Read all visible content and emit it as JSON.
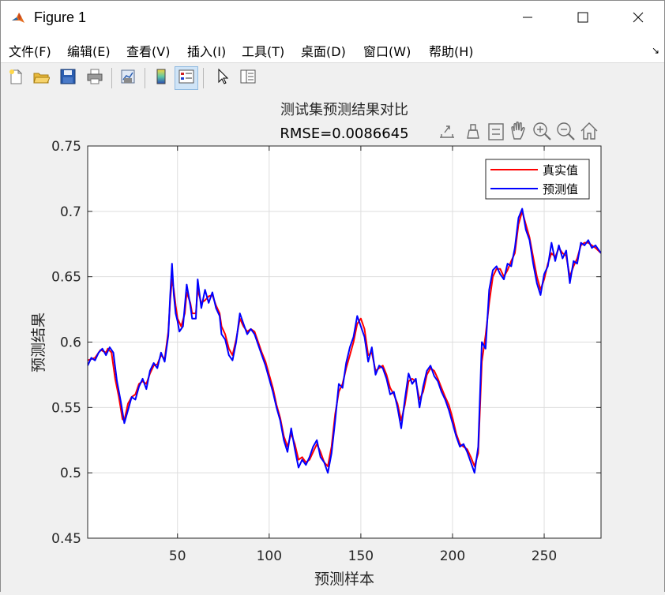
{
  "window": {
    "title": "Figure 1",
    "icon": "matlab-logo-icon",
    "controls": [
      "minimize-icon",
      "maximize-icon",
      "close-icon"
    ]
  },
  "menu": {
    "items": [
      "文件(F)",
      "编辑(E)",
      "查看(V)",
      "插入(I)",
      "工具(T)",
      "桌面(D)",
      "窗口(W)",
      "帮助(H)"
    ]
  },
  "toolbar": {
    "buttons": [
      "new-figure-icon",
      "open-file-icon",
      "save-icon",
      "print-icon",
      "link-plot-icon",
      "insert-colorbar-icon",
      "insert-legend-icon",
      "edit-plot-icon",
      "property-inspector-icon"
    ]
  },
  "axes_toolbar": {
    "buttons": [
      "export-icon",
      "brush-icon",
      "datatips-icon",
      "pan-icon",
      "zoom-in-icon",
      "zoom-out-icon",
      "home-icon"
    ]
  },
  "chart_data": {
    "type": "line",
    "title": "测试集预测结果对比",
    "subtitle": "RMSE=0.0086645",
    "xlabel": "预测样本",
    "ylabel": "预测结果",
    "xlim": [
      1,
      281
    ],
    "ylim": [
      0.45,
      0.75
    ],
    "xticks": [
      50,
      100,
      150,
      200,
      250
    ],
    "yticks": [
      0.45,
      0.5,
      0.55,
      0.6,
      0.65,
      0.7,
      0.75
    ],
    "ytick_labels": [
      "0.45",
      "0.5",
      "0.55",
      "0.6",
      "0.65",
      "0.7",
      "0.75"
    ],
    "grid": true,
    "legend_position": "top-right",
    "series": [
      {
        "name": "真实值",
        "color": "#ff0000",
        "keypoints": [
          [
            1,
            0.586
          ],
          [
            5,
            0.588
          ],
          [
            8,
            0.594
          ],
          [
            11,
            0.592
          ],
          [
            12,
            0.595
          ],
          [
            14,
            0.592
          ],
          [
            16,
            0.572
          ],
          [
            18,
            0.558
          ],
          [
            20,
            0.541
          ],
          [
            21,
            0.54
          ],
          [
            23,
            0.553
          ],
          [
            25,
            0.558
          ],
          [
            27,
            0.56
          ],
          [
            29,
            0.568
          ],
          [
            31,
            0.57
          ],
          [
            33,
            0.568
          ],
          [
            35,
            0.576
          ],
          [
            37,
            0.582
          ],
          [
            39,
            0.583
          ],
          [
            41,
            0.59
          ],
          [
            43,
            0.587
          ],
          [
            45,
            0.608
          ],
          [
            46,
            0.632
          ],
          [
            47,
            0.648
          ],
          [
            48,
            0.64
          ],
          [
            49,
            0.628
          ],
          [
            50,
            0.618
          ],
          [
            52,
            0.612
          ],
          [
            54,
            0.622
          ],
          [
            55,
            0.638
          ],
          [
            57,
            0.63
          ],
          [
            58,
            0.622
          ],
          [
            60,
            0.622
          ],
          [
            61,
            0.64
          ],
          [
            63,
            0.63
          ],
          [
            65,
            0.632
          ],
          [
            67,
            0.635
          ],
          [
            69,
            0.636
          ],
          [
            71,
            0.628
          ],
          [
            73,
            0.622
          ],
          [
            74,
            0.612
          ],
          [
            76,
            0.606
          ],
          [
            78,
            0.595
          ],
          [
            80,
            0.59
          ],
          [
            82,
            0.602
          ],
          [
            84,
            0.618
          ],
          [
            86,
            0.612
          ],
          [
            88,
            0.608
          ],
          [
            90,
            0.61
          ],
          [
            92,
            0.608
          ],
          [
            94,
            0.6
          ],
          [
            96,
            0.592
          ],
          [
            98,
            0.585
          ],
          [
            100,
            0.575
          ],
          [
            102,
            0.565
          ],
          [
            104,
            0.552
          ],
          [
            106,
            0.542
          ],
          [
            108,
            0.528
          ],
          [
            110,
            0.52
          ],
          [
            112,
            0.53
          ],
          [
            114,
            0.522
          ],
          [
            116,
            0.51
          ],
          [
            118,
            0.512
          ],
          [
            120,
            0.508
          ],
          [
            122,
            0.51
          ],
          [
            124,
            0.516
          ],
          [
            126,
            0.522
          ],
          [
            128,
            0.516
          ],
          [
            130,
            0.508
          ],
          [
            132,
            0.505
          ],
          [
            134,
            0.52
          ],
          [
            136,
            0.545
          ],
          [
            138,
            0.562
          ],
          [
            140,
            0.568
          ],
          [
            142,
            0.58
          ],
          [
            144,
            0.59
          ],
          [
            146,
            0.6
          ],
          [
            148,
            0.614
          ],
          [
            150,
            0.618
          ],
          [
            152,
            0.61
          ],
          [
            154,
            0.59
          ],
          [
            156,
            0.592
          ],
          [
            158,
            0.578
          ],
          [
            160,
            0.58
          ],
          [
            162,
            0.582
          ],
          [
            164,
            0.575
          ],
          [
            166,
            0.565
          ],
          [
            168,
            0.56
          ],
          [
            170,
            0.553
          ],
          [
            172,
            0.54
          ],
          [
            174,
            0.552
          ],
          [
            176,
            0.57
          ],
          [
            178,
            0.572
          ],
          [
            180,
            0.57
          ],
          [
            182,
            0.556
          ],
          [
            184,
            0.562
          ],
          [
            186,
            0.575
          ],
          [
            188,
            0.58
          ],
          [
            190,
            0.578
          ],
          [
            192,
            0.572
          ],
          [
            194,
            0.565
          ],
          [
            196,
            0.558
          ],
          [
            198,
            0.552
          ],
          [
            200,
            0.542
          ],
          [
            202,
            0.53
          ],
          [
            204,
            0.522
          ],
          [
            206,
            0.52
          ],
          [
            208,
            0.518
          ],
          [
            210,
            0.512
          ],
          [
            212,
            0.505
          ],
          [
            214,
            0.515
          ],
          [
            216,
            0.585
          ],
          [
            218,
            0.605
          ],
          [
            220,
            0.63
          ],
          [
            222,
            0.65
          ],
          [
            224,
            0.656
          ],
          [
            226,
            0.656
          ],
          [
            228,
            0.65
          ],
          [
            230,
            0.655
          ],
          [
            232,
            0.662
          ],
          [
            234,
            0.668
          ],
          [
            236,
            0.69
          ],
          [
            238,
            0.7
          ],
          [
            240,
            0.69
          ],
          [
            242,
            0.68
          ],
          [
            244,
            0.665
          ],
          [
            246,
            0.65
          ],
          [
            248,
            0.64
          ],
          [
            250,
            0.648
          ],
          [
            252,
            0.66
          ],
          [
            254,
            0.668
          ],
          [
            256,
            0.665
          ],
          [
            258,
            0.672
          ],
          [
            260,
            0.668
          ],
          [
            262,
            0.666
          ],
          [
            264,
            0.65
          ],
          [
            266,
            0.658
          ],
          [
            268,
            0.664
          ],
          [
            270,
            0.674
          ],
          [
            272,
            0.676
          ],
          [
            274,
            0.676
          ],
          [
            276,
            0.674
          ],
          [
            278,
            0.672
          ],
          [
            281,
            0.668
          ]
        ]
      },
      {
        "name": "预测值",
        "color": "#0000ff",
        "keypoints": [
          [
            1,
            0.582
          ],
          [
            3,
            0.588
          ],
          [
            5,
            0.586
          ],
          [
            7,
            0.592
          ],
          [
            9,
            0.595
          ],
          [
            11,
            0.59
          ],
          [
            13,
            0.596
          ],
          [
            15,
            0.592
          ],
          [
            17,
            0.57
          ],
          [
            19,
            0.555
          ],
          [
            21,
            0.538
          ],
          [
            23,
            0.548
          ],
          [
            25,
            0.558
          ],
          [
            27,
            0.556
          ],
          [
            29,
            0.566
          ],
          [
            31,
            0.572
          ],
          [
            33,
            0.564
          ],
          [
            35,
            0.578
          ],
          [
            37,
            0.584
          ],
          [
            39,
            0.58
          ],
          [
            41,
            0.592
          ],
          [
            43,
            0.585
          ],
          [
            45,
            0.605
          ],
          [
            46,
            0.636
          ],
          [
            47,
            0.66
          ],
          [
            48,
            0.636
          ],
          [
            49,
            0.622
          ],
          [
            50,
            0.616
          ],
          [
            51,
            0.608
          ],
          [
            53,
            0.612
          ],
          [
            55,
            0.644
          ],
          [
            57,
            0.628
          ],
          [
            58,
            0.618
          ],
          [
            60,
            0.618
          ],
          [
            61,
            0.648
          ],
          [
            63,
            0.626
          ],
          [
            65,
            0.64
          ],
          [
            67,
            0.63
          ],
          [
            69,
            0.638
          ],
          [
            71,
            0.626
          ],
          [
            73,
            0.62
          ],
          [
            74,
            0.606
          ],
          [
            76,
            0.602
          ],
          [
            78,
            0.59
          ],
          [
            80,
            0.586
          ],
          [
            82,
            0.6
          ],
          [
            84,
            0.622
          ],
          [
            86,
            0.614
          ],
          [
            88,
            0.606
          ],
          [
            90,
            0.61
          ],
          [
            92,
            0.606
          ],
          [
            94,
            0.598
          ],
          [
            96,
            0.59
          ],
          [
            98,
            0.582
          ],
          [
            100,
            0.572
          ],
          [
            102,
            0.562
          ],
          [
            104,
            0.55
          ],
          [
            106,
            0.54
          ],
          [
            108,
            0.525
          ],
          [
            110,
            0.516
          ],
          [
            112,
            0.534
          ],
          [
            114,
            0.518
          ],
          [
            116,
            0.504
          ],
          [
            118,
            0.51
          ],
          [
            120,
            0.506
          ],
          [
            122,
            0.512
          ],
          [
            124,
            0.52
          ],
          [
            126,
            0.525
          ],
          [
            128,
            0.512
          ],
          [
            130,
            0.508
          ],
          [
            132,
            0.5
          ],
          [
            134,
            0.515
          ],
          [
            136,
            0.54
          ],
          [
            138,
            0.568
          ],
          [
            140,
            0.565
          ],
          [
            142,
            0.584
          ],
          [
            144,
            0.596
          ],
          [
            146,
            0.604
          ],
          [
            148,
            0.62
          ],
          [
            150,
            0.612
          ],
          [
            152,
            0.604
          ],
          [
            154,
            0.585
          ],
          [
            156,
            0.596
          ],
          [
            158,
            0.575
          ],
          [
            160,
            0.582
          ],
          [
            162,
            0.58
          ],
          [
            164,
            0.572
          ],
          [
            166,
            0.56
          ],
          [
            168,
            0.562
          ],
          [
            170,
            0.55
          ],
          [
            172,
            0.534
          ],
          [
            174,
            0.556
          ],
          [
            176,
            0.576
          ],
          [
            178,
            0.568
          ],
          [
            180,
            0.572
          ],
          [
            182,
            0.55
          ],
          [
            184,
            0.566
          ],
          [
            186,
            0.578
          ],
          [
            188,
            0.582
          ],
          [
            190,
            0.574
          ],
          [
            192,
            0.57
          ],
          [
            194,
            0.562
          ],
          [
            196,
            0.556
          ],
          [
            198,
            0.548
          ],
          [
            200,
            0.538
          ],
          [
            202,
            0.528
          ],
          [
            204,
            0.52
          ],
          [
            206,
            0.522
          ],
          [
            208,
            0.516
          ],
          [
            210,
            0.508
          ],
          [
            212,
            0.5
          ],
          [
            214,
            0.52
          ],
          [
            216,
            0.6
          ],
          [
            218,
            0.595
          ],
          [
            220,
            0.64
          ],
          [
            222,
            0.655
          ],
          [
            224,
            0.658
          ],
          [
            226,
            0.652
          ],
          [
            228,
            0.648
          ],
          [
            230,
            0.66
          ],
          [
            232,
            0.658
          ],
          [
            234,
            0.672
          ],
          [
            236,
            0.695
          ],
          [
            238,
            0.702
          ],
          [
            240,
            0.686
          ],
          [
            242,
            0.678
          ],
          [
            244,
            0.66
          ],
          [
            246,
            0.645
          ],
          [
            248,
            0.636
          ],
          [
            250,
            0.652
          ],
          [
            252,
            0.658
          ],
          [
            254,
            0.676
          ],
          [
            256,
            0.662
          ],
          [
            258,
            0.674
          ],
          [
            260,
            0.664
          ],
          [
            262,
            0.67
          ],
          [
            264,
            0.645
          ],
          [
            266,
            0.662
          ],
          [
            268,
            0.66
          ],
          [
            270,
            0.676
          ],
          [
            272,
            0.674
          ],
          [
            274,
            0.678
          ],
          [
            276,
            0.672
          ],
          [
            278,
            0.674
          ],
          [
            281,
            0.668
          ]
        ]
      }
    ]
  }
}
